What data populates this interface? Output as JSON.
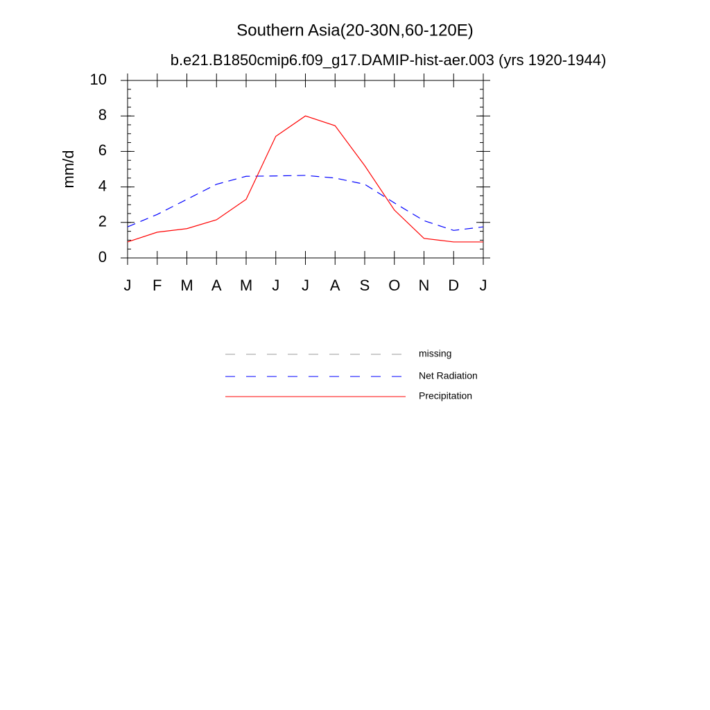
{
  "chart_data": {
    "type": "line",
    "title": "Southern Asia(20-30N,60-120E)",
    "subtitle": "b.e21.B1850cmip6.f09_g17.DAMIP-hist-aer.003 (yrs 1920-1944)",
    "y_label": "mm/d",
    "categories": [
      "J",
      "F",
      "M",
      "A",
      "M",
      "J",
      "J",
      "A",
      "S",
      "O",
      "N",
      "D",
      "J"
    ],
    "ylim": [
      0,
      10
    ],
    "yticks": [
      0,
      2,
      4,
      6,
      8,
      10
    ],
    "series": [
      {
        "name": "missing",
        "color": "#999999",
        "dashed": true,
        "values": [
          null,
          null,
          null,
          null,
          null,
          null,
          null,
          null,
          null,
          null,
          null,
          null,
          null
        ]
      },
      {
        "name": "Net Radiation",
        "color": "#0000ff",
        "dashed": true,
        "values": [
          1.75,
          2.45,
          3.3,
          4.15,
          4.6,
          4.62,
          4.65,
          4.5,
          4.15,
          3.1,
          2.1,
          1.55,
          1.75
        ]
      },
      {
        "name": "Precipitation",
        "color": "#ff0000",
        "dashed": false,
        "values": [
          0.9,
          1.45,
          1.65,
          2.15,
          3.3,
          6.85,
          8.0,
          7.45,
          5.2,
          2.7,
          1.1,
          0.9,
          0.9
        ]
      }
    ]
  }
}
